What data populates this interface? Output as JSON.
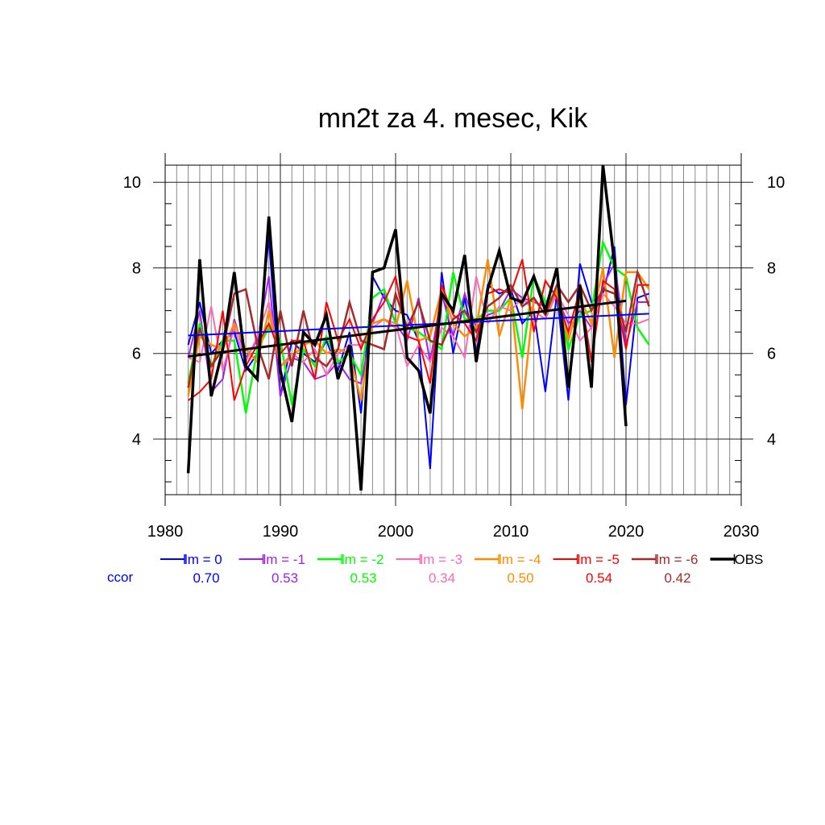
{
  "chart_data": {
    "type": "line",
    "title": "mn2t za 4. mesec, Kik",
    "xlabel": "",
    "ylabel": "",
    "xlim": [
      1980,
      2030
    ],
    "ylim": [
      2.7,
      10.4
    ],
    "x_ticks": [
      1980,
      1990,
      2000,
      2010,
      2020,
      2030
    ],
    "y_ticks": [
      4,
      6,
      8,
      10
    ],
    "grid": true,
    "legend_position": "bottom",
    "ccor_label": "ccor",
    "ccor_color": "#0000ff",
    "series": [
      {
        "name": "lm = 0",
        "color": "#0000ff",
        "width": 2,
        "ccor": "0.70",
        "x": [
          1982,
          1983,
          1984,
          1985,
          1986,
          1987,
          1988,
          1989,
          1990,
          1991,
          1992,
          1993,
          1994,
          1995,
          1996,
          1997,
          1998,
          1999,
          2000,
          2001,
          2002,
          2003,
          2004,
          2005,
          2006,
          2007,
          2008,
          2009,
          2010,
          2011,
          2012,
          2013,
          2014,
          2015,
          2016,
          2017,
          2018,
          2019,
          2020,
          2021,
          2022
        ],
        "y": [
          6.2,
          7.2,
          6.0,
          6.3,
          6.5,
          5.6,
          6.0,
          8.7,
          5.0,
          6.3,
          6.0,
          5.8,
          6.3,
          5.6,
          6.5,
          4.6,
          7.8,
          7.3,
          7.0,
          6.9,
          6.3,
          3.3,
          7.9,
          6.0,
          7.3,
          6.0,
          7.6,
          7.4,
          7.5,
          6.7,
          7.0,
          5.1,
          7.4,
          4.9,
          8.1,
          7.2,
          7.4,
          8.5,
          4.8,
          7.3,
          7.4
        ]
      },
      {
        "name": "lm = -1",
        "color": "#a020f0",
        "width": 2,
        "ccor": "0.53",
        "x": [
          1982,
          1983,
          1984,
          1985,
          1986,
          1987,
          1988,
          1989,
          1990,
          1991,
          1992,
          1993,
          1994,
          1995,
          1996,
          1997,
          1998,
          1999,
          2000,
          2001,
          2002,
          2003,
          2004,
          2005,
          2006,
          2007,
          2008,
          2009,
          2010,
          2011,
          2012,
          2013,
          2014,
          2015,
          2016,
          2017,
          2018,
          2019,
          2020,
          2021,
          2022
        ],
        "y": [
          5.9,
          7.0,
          5.1,
          5.4,
          6.8,
          5.9,
          6.3,
          7.8,
          5.0,
          5.9,
          5.8,
          5.4,
          5.5,
          5.8,
          5.4,
          5.3,
          6.7,
          7.4,
          6.7,
          6.3,
          7.3,
          5.8,
          7.4,
          6.4,
          7.4,
          6.6,
          6.9,
          7.0,
          7.5,
          7.3,
          7.2,
          7.1,
          7.3,
          6.7,
          7.0,
          6.6,
          7.6,
          8.1,
          6.2,
          7.2,
          7.2
        ]
      },
      {
        "name": "lm = -2",
        "color": "#00ff00",
        "width": 2.5,
        "ccor": "0.53",
        "x": [
          1982,
          1983,
          1984,
          1985,
          1986,
          1987,
          1988,
          1989,
          1990,
          1991,
          1992,
          1993,
          1994,
          1995,
          1996,
          1997,
          1998,
          1999,
          2000,
          2001,
          2002,
          2003,
          2004,
          2005,
          2006,
          2007,
          2008,
          2009,
          2010,
          2011,
          2012,
          2013,
          2014,
          2015,
          2016,
          2017,
          2018,
          2019,
          2020,
          2021,
          2022
        ],
        "y": [
          5.3,
          6.7,
          5.7,
          6.3,
          6.3,
          4.6,
          6.1,
          6.6,
          6.3,
          4.8,
          6.1,
          5.7,
          6.4,
          5.8,
          6.0,
          5.5,
          7.3,
          7.5,
          6.7,
          6.6,
          6.5,
          6.3,
          6.1,
          7.9,
          6.8,
          6.8,
          7.0,
          7.0,
          7.3,
          5.9,
          7.8,
          7.2,
          7.4,
          6.1,
          6.9,
          7.0,
          8.6,
          8.0,
          7.8,
          6.6,
          6.2
        ]
      },
      {
        "name": "lm = -3",
        "color": "#ff69b4",
        "width": 2,
        "ccor": "0.34",
        "x": [
          1982,
          1983,
          1984,
          1985,
          1986,
          1987,
          1988,
          1989,
          1990,
          1991,
          1992,
          1993,
          1994,
          1995,
          1996,
          1997,
          1998,
          1999,
          2000,
          2001,
          2002,
          2003,
          2004,
          2005,
          2006,
          2007,
          2008,
          2009,
          2010,
          2011,
          2012,
          2013,
          2014,
          2015,
          2016,
          2017,
          2018,
          2019,
          2020,
          2021,
          2022
        ],
        "y": [
          5.9,
          5.8,
          7.1,
          5.6,
          6.6,
          5.8,
          6.4,
          7.2,
          5.7,
          6.0,
          5.8,
          6.1,
          5.5,
          6.0,
          6.2,
          6.2,
          6.6,
          6.8,
          6.7,
          5.7,
          6.2,
          5.8,
          6.6,
          6.4,
          5.9,
          7.8,
          6.7,
          7.1,
          7.0,
          7.3,
          7.0,
          6.8,
          7.4,
          6.9,
          6.3,
          6.6,
          7.4,
          7.1,
          6.7,
          6.7,
          6.8
        ]
      },
      {
        "name": "lm = -4",
        "color": "#ff8c00",
        "width": 2.5,
        "ccor": "0.50",
        "x": [
          1982,
          1983,
          1984,
          1985,
          1986,
          1987,
          1988,
          1989,
          1990,
          1991,
          1992,
          1993,
          1994,
          1995,
          1996,
          1997,
          1998,
          1999,
          2000,
          2001,
          2002,
          2003,
          2004,
          2005,
          2006,
          2007,
          2008,
          2009,
          2010,
          2011,
          2012,
          2013,
          2014,
          2015,
          2016,
          2017,
          2018,
          2019,
          2020,
          2021,
          2022
        ],
        "y": [
          5.0,
          6.4,
          6.2,
          6.1,
          6.7,
          6.1,
          5.8,
          7.0,
          5.7,
          5.9,
          6.2,
          6.3,
          6.0,
          6.1,
          6.0,
          4.9,
          6.7,
          6.8,
          6.6,
          7.7,
          6.3,
          6.4,
          7.5,
          6.7,
          6.4,
          6.6,
          8.2,
          6.4,
          7.3,
          4.7,
          7.3,
          6.9,
          7.5,
          6.3,
          7.3,
          6.7,
          8.0,
          5.9,
          7.9,
          7.9,
          7.5
        ]
      },
      {
        "name": "lm = -5",
        "color": "#ff0000",
        "width": 2,
        "ccor": "0.54",
        "x": [
          1982,
          1983,
          1984,
          1985,
          1986,
          1987,
          1988,
          1989,
          1990,
          1991,
          1992,
          1993,
          1994,
          1995,
          1996,
          1997,
          1998,
          1999,
          2000,
          2001,
          2002,
          2003,
          2004,
          2005,
          2006,
          2007,
          2008,
          2009,
          2010,
          2011,
          2012,
          2013,
          2014,
          2015,
          2016,
          2017,
          2018,
          2019,
          2020,
          2021,
          2022
        ],
        "y": [
          4.9,
          5.1,
          5.4,
          7.0,
          4.9,
          5.7,
          6.2,
          6.7,
          6.0,
          6.3,
          6.3,
          5.4,
          7.2,
          6.3,
          6.8,
          6.1,
          6.8,
          7.2,
          7.8,
          6.4,
          6.3,
          5.3,
          7.6,
          6.9,
          6.7,
          6.3,
          7.4,
          7.5,
          7.4,
          8.2,
          6.5,
          7.7,
          7.3,
          6.5,
          7.5,
          5.8,
          7.7,
          7.5,
          6.1,
          7.6,
          7.6
        ]
      },
      {
        "name": "lm = -6",
        "color": "#a52a2a",
        "width": 2.5,
        "ccor": "0.42",
        "x": [
          1982,
          1983,
          1984,
          1985,
          1986,
          1987,
          1988,
          1989,
          1990,
          1991,
          1992,
          1993,
          1994,
          1995,
          1996,
          1997,
          1998,
          1999,
          2000,
          2001,
          2002,
          2003,
          2004,
          2005,
          2006,
          2007,
          2008,
          2009,
          2010,
          2011,
          2012,
          2013,
          2014,
          2015,
          2016,
          2017,
          2018,
          2019,
          2020,
          2021,
          2022
        ],
        "y": [
          5.2,
          6.6,
          5.7,
          6.1,
          7.4,
          7.5,
          6.2,
          5.4,
          7.0,
          5.7,
          7.0,
          5.9,
          5.7,
          6.1,
          7.2,
          6.3,
          6.2,
          6.1,
          7.4,
          6.6,
          7.2,
          6.3,
          6.2,
          6.8,
          7.0,
          6.5,
          7.1,
          7.3,
          7.6,
          7.1,
          7.3,
          6.9,
          7.6,
          7.2,
          7.6,
          7.0,
          7.5,
          7.4,
          6.5,
          7.9,
          7.1
        ]
      },
      {
        "name": "OBS",
        "color": "#000000",
        "width": 3.5,
        "ccor": "",
        "x": [
          1982,
          1983,
          1984,
          1985,
          1986,
          1987,
          1988,
          1989,
          1990,
          1991,
          1992,
          1993,
          1994,
          1995,
          1996,
          1997,
          1998,
          1999,
          2000,
          2001,
          2002,
          2003,
          2004,
          2005,
          2006,
          2007,
          2008,
          2009,
          2010,
          2011,
          2012,
          2013,
          2014,
          2015,
          2016,
          2017,
          2018,
          2019,
          2020
        ],
        "y": [
          3.2,
          8.2,
          5.0,
          6.1,
          7.9,
          5.7,
          5.4,
          9.2,
          5.6,
          4.4,
          6.5,
          6.2,
          6.9,
          5.4,
          6.2,
          2.8,
          7.9,
          8.0,
          8.9,
          5.9,
          5.6,
          4.6,
          7.4,
          7.0,
          8.3,
          5.8,
          7.5,
          8.4,
          7.3,
          7.2,
          7.8,
          7.0,
          8.0,
          5.2,
          7.6,
          5.2,
          10.4,
          8.1,
          4.3
        ]
      }
    ],
    "trendlines": [
      {
        "color": "#0000ff",
        "width": 2,
        "x": [
          1982,
          2022
        ],
        "y": [
          6.42,
          6.93
        ]
      },
      {
        "color": "#000000",
        "width": 3,
        "x": [
          1982,
          2020
        ],
        "y": [
          5.93,
          7.23
        ]
      }
    ]
  }
}
